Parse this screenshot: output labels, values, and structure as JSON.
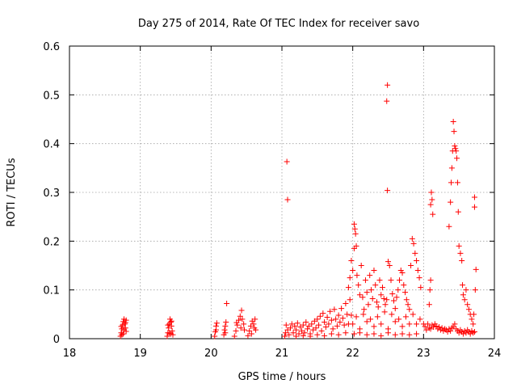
{
  "chart_data": {
    "type": "scatter",
    "title": "Day 275 of 2014, Rate Of TEC Index for receiver savo",
    "xlabel": "GPS time / hours",
    "ylabel": "ROTI / TECUs",
    "xlim": [
      18,
      24
    ],
    "ylim": [
      0,
      0.6
    ],
    "xticks": [
      18,
      19,
      20,
      21,
      22,
      23,
      24
    ],
    "yticks": [
      0,
      0.1,
      0.2,
      0.3,
      0.4,
      0.5,
      0.6
    ],
    "ytick_labels": [
      "0",
      "0.1",
      "0.2",
      "0.3",
      "0.4",
      "0.5",
      "0.6"
    ],
    "grid": true,
    "marker": "+",
    "color": "#ff0000",
    "series": [
      {
        "name": "ROTI",
        "points": [
          [
            18.72,
            0.005
          ],
          [
            18.73,
            0.012
          ],
          [
            18.74,
            0.02
          ],
          [
            18.75,
            0.028
          ],
          [
            18.76,
            0.035
          ],
          [
            18.77,
            0.04
          ],
          [
            18.78,
            0.03
          ],
          [
            18.79,
            0.022
          ],
          [
            18.8,
            0.015
          ],
          [
            18.74,
            0.008
          ],
          [
            18.77,
            0.018
          ],
          [
            18.79,
            0.033
          ],
          [
            18.73,
            0.025
          ],
          [
            18.76,
            0.01
          ],
          [
            18.8,
            0.038
          ],
          [
            19.38,
            0.005
          ],
          [
            19.39,
            0.012
          ],
          [
            19.4,
            0.022
          ],
          [
            19.41,
            0.03
          ],
          [
            19.42,
            0.04
          ],
          [
            19.43,
            0.034
          ],
          [
            19.44,
            0.026
          ],
          [
            19.45,
            0.016
          ],
          [
            19.46,
            0.008
          ],
          [
            19.41,
            0.012
          ],
          [
            19.44,
            0.036
          ],
          [
            19.39,
            0.028
          ],
          [
            19.43,
            0.01
          ],
          [
            20.05,
            0.005
          ],
          [
            20.06,
            0.014
          ],
          [
            20.07,
            0.026
          ],
          [
            20.08,
            0.032
          ],
          [
            20.07,
            0.018
          ],
          [
            20.18,
            0.008
          ],
          [
            20.19,
            0.018
          ],
          [
            20.2,
            0.026
          ],
          [
            20.21,
            0.034
          ],
          [
            20.22,
            0.072
          ],
          [
            20.2,
            0.012
          ],
          [
            20.33,
            0.005
          ],
          [
            20.35,
            0.016
          ],
          [
            20.37,
            0.028
          ],
          [
            20.39,
            0.038
          ],
          [
            20.41,
            0.046
          ],
          [
            20.43,
            0.058
          ],
          [
            20.44,
            0.04
          ],
          [
            20.46,
            0.03
          ],
          [
            20.47,
            0.018
          ],
          [
            20.36,
            0.033
          ],
          [
            20.42,
            0.022
          ],
          [
            20.52,
            0.006
          ],
          [
            20.54,
            0.016
          ],
          [
            20.56,
            0.026
          ],
          [
            20.58,
            0.036
          ],
          [
            20.6,
            0.03
          ],
          [
            20.62,
            0.04
          ],
          [
            20.63,
            0.018
          ],
          [
            20.57,
            0.01
          ],
          [
            20.61,
            0.022
          ],
          [
            21.07,
            0.363
          ],
          [
            21.08,
            0.285
          ],
          [
            21.04,
            0.005
          ],
          [
            21.05,
            0.012
          ],
          [
            21.06,
            0.028
          ],
          [
            21.08,
            0.018
          ],
          [
            21.1,
            0.008
          ],
          [
            21.12,
            0.022
          ],
          [
            21.14,
            0.03
          ],
          [
            21.16,
            0.012
          ],
          [
            21.18,
            0.026
          ],
          [
            21.2,
            0.018
          ],
          [
            21.22,
            0.032
          ],
          [
            21.24,
            0.01
          ],
          [
            21.26,
            0.024
          ],
          [
            21.28,
            0.016
          ],
          [
            21.3,
            0.028
          ],
          [
            21.32,
            0.012
          ],
          [
            21.34,
            0.034
          ],
          [
            21.36,
            0.02
          ],
          [
            21.38,
            0.026
          ],
          [
            21.4,
            0.01
          ],
          [
            21.42,
            0.03
          ],
          [
            21.44,
            0.018
          ],
          [
            21.46,
            0.036
          ],
          [
            21.48,
            0.022
          ],
          [
            21.5,
            0.04
          ],
          [
            21.52,
            0.028
          ],
          [
            21.54,
            0.046
          ],
          [
            21.56,
            0.016
          ],
          [
            21.58,
            0.052
          ],
          [
            21.6,
            0.034
          ],
          [
            21.62,
            0.024
          ],
          [
            21.64,
            0.044
          ],
          [
            21.66,
            0.03
          ],
          [
            21.68,
            0.056
          ],
          [
            21.7,
            0.038
          ],
          [
            21.72,
            0.02
          ],
          [
            21.74,
            0.06
          ],
          [
            21.76,
            0.04
          ],
          [
            21.78,
            0.026
          ],
          [
            21.8,
            0.048
          ],
          [
            21.82,
            0.034
          ],
          [
            21.84,
            0.062
          ],
          [
            21.86,
            0.042
          ],
          [
            21.88,
            0.028
          ],
          [
            21.9,
            0.072
          ],
          [
            21.92,
            0.05
          ],
          [
            21.94,
            0.03
          ],
          [
            21.96,
            0.08
          ],
          [
            21.98,
            0.048
          ],
          [
            21.2,
            0.005
          ],
          [
            21.3,
            0.006
          ],
          [
            21.4,
            0.005
          ],
          [
            21.5,
            0.008
          ],
          [
            21.6,
            0.006
          ],
          [
            21.7,
            0.01
          ],
          [
            21.8,
            0.008
          ],
          [
            21.9,
            0.012
          ],
          [
            21.94,
            0.105
          ],
          [
            21.96,
            0.125
          ],
          [
            21.98,
            0.16
          ],
          [
            22.0,
            0.14
          ],
          [
            22.02,
            0.185
          ],
          [
            22.02,
            0.235
          ],
          [
            22.03,
            0.225
          ],
          [
            22.04,
            0.215
          ],
          [
            22.05,
            0.19
          ],
          [
            22.06,
            0.13
          ],
          [
            22.08,
            0.11
          ],
          [
            22.1,
            0.09
          ],
          [
            22.12,
            0.15
          ],
          [
            22.14,
            0.085
          ],
          [
            22.16,
            0.06
          ],
          [
            22.18,
            0.12
          ],
          [
            22.2,
            0.095
          ],
          [
            22.22,
            0.07
          ],
          [
            22.24,
            0.13
          ],
          [
            22.26,
            0.1
          ],
          [
            22.28,
            0.082
          ],
          [
            22.3,
            0.14
          ],
          [
            22.32,
            0.11
          ],
          [
            22.34,
            0.075
          ],
          [
            22.36,
            0.065
          ],
          [
            22.38,
            0.12
          ],
          [
            22.4,
            0.09
          ],
          [
            22.42,
            0.105
          ],
          [
            22.44,
            0.082
          ],
          [
            22.46,
            0.07
          ],
          [
            22.48,
            0.08
          ],
          [
            22.5,
            0.158
          ],
          [
            22.52,
            0.15
          ],
          [
            22.54,
            0.12
          ],
          [
            22.56,
            0.092
          ],
          [
            22.58,
            0.078
          ],
          [
            22.6,
            0.062
          ],
          [
            22.62,
            0.085
          ],
          [
            22.64,
            0.1
          ],
          [
            22.66,
            0.12
          ],
          [
            22.68,
            0.14
          ],
          [
            22.7,
            0.135
          ],
          [
            22.72,
            0.11
          ],
          [
            22.74,
            0.095
          ],
          [
            22.76,
            0.08
          ],
          [
            22.78,
            0.07
          ],
          [
            22.8,
            0.06
          ],
          [
            22.82,
            0.15
          ],
          [
            22.84,
            0.205
          ],
          [
            22.86,
            0.195
          ],
          [
            22.88,
            0.175
          ],
          [
            22.9,
            0.16
          ],
          [
            22.92,
            0.14
          ],
          [
            22.94,
            0.125
          ],
          [
            22.96,
            0.105
          ],
          [
            22.0,
            0.03
          ],
          [
            22.05,
            0.045
          ],
          [
            22.1,
            0.02
          ],
          [
            22.15,
            0.05
          ],
          [
            22.2,
            0.035
          ],
          [
            22.25,
            0.04
          ],
          [
            22.3,
            0.025
          ],
          [
            22.35,
            0.045
          ],
          [
            22.4,
            0.03
          ],
          [
            22.45,
            0.055
          ],
          [
            22.5,
            0.02
          ],
          [
            22.55,
            0.05
          ],
          [
            22.6,
            0.035
          ],
          [
            22.65,
            0.04
          ],
          [
            22.7,
            0.025
          ],
          [
            22.75,
            0.045
          ],
          [
            22.8,
            0.03
          ],
          [
            22.85,
            0.05
          ],
          [
            22.9,
            0.03
          ],
          [
            22.95,
            0.04
          ],
          [
            22.02,
            0.01
          ],
          [
            22.1,
            0.012
          ],
          [
            22.2,
            0.008
          ],
          [
            22.3,
            0.01
          ],
          [
            22.4,
            0.006
          ],
          [
            22.5,
            0.012
          ],
          [
            22.6,
            0.008
          ],
          [
            22.7,
            0.01
          ],
          [
            22.8,
            0.008
          ],
          [
            22.9,
            0.01
          ],
          [
            22.49,
            0.52
          ],
          [
            22.48,
            0.487
          ],
          [
            22.49,
            0.304
          ],
          [
            23.0,
            0.03
          ],
          [
            23.02,
            0.025
          ],
          [
            23.04,
            0.018
          ],
          [
            23.06,
            0.03
          ],
          [
            23.08,
            0.022
          ],
          [
            23.1,
            0.02
          ],
          [
            23.12,
            0.028
          ],
          [
            23.14,
            0.024
          ],
          [
            23.16,
            0.03
          ],
          [
            23.18,
            0.026
          ],
          [
            23.2,
            0.02
          ],
          [
            23.22,
            0.024
          ],
          [
            23.24,
            0.018
          ],
          [
            23.26,
            0.022
          ],
          [
            23.28,
            0.016
          ],
          [
            23.3,
            0.02
          ],
          [
            23.32,
            0.018
          ],
          [
            23.34,
            0.014
          ],
          [
            23.36,
            0.02
          ],
          [
            23.38,
            0.016
          ],
          [
            23.4,
            0.022
          ],
          [
            23.42,
            0.025
          ],
          [
            23.44,
            0.03
          ],
          [
            23.46,
            0.02
          ],
          [
            23.48,
            0.016
          ],
          [
            23.5,
            0.012
          ],
          [
            23.52,
            0.018
          ],
          [
            23.54,
            0.014
          ],
          [
            23.56,
            0.01
          ],
          [
            23.58,
            0.016
          ],
          [
            23.6,
            0.012
          ],
          [
            23.62,
            0.018
          ],
          [
            23.64,
            0.014
          ],
          [
            23.66,
            0.01
          ],
          [
            23.68,
            0.016
          ],
          [
            23.7,
            0.012
          ],
          [
            23.72,
            0.014
          ],
          [
            23.08,
            0.07
          ],
          [
            23.09,
            0.1
          ],
          [
            23.1,
            0.12
          ],
          [
            23.1,
            0.275
          ],
          [
            23.11,
            0.3
          ],
          [
            23.12,
            0.285
          ],
          [
            23.13,
            0.255
          ],
          [
            23.36,
            0.23
          ],
          [
            23.38,
            0.28
          ],
          [
            23.39,
            0.32
          ],
          [
            23.4,
            0.35
          ],
          [
            23.41,
            0.385
          ],
          [
            23.42,
            0.445
          ],
          [
            23.43,
            0.425
          ],
          [
            23.44,
            0.395
          ],
          [
            23.45,
            0.39
          ],
          [
            23.46,
            0.385
          ],
          [
            23.47,
            0.37
          ],
          [
            23.48,
            0.32
          ],
          [
            23.49,
            0.26
          ],
          [
            23.5,
            0.19
          ],
          [
            23.52,
            0.175
          ],
          [
            23.54,
            0.16
          ],
          [
            23.55,
            0.11
          ],
          [
            23.56,
            0.09
          ],
          [
            23.58,
            0.08
          ],
          [
            23.6,
            0.1
          ],
          [
            23.62,
            0.07
          ],
          [
            23.64,
            0.06
          ],
          [
            23.66,
            0.05
          ],
          [
            23.68,
            0.04
          ],
          [
            23.7,
            0.03
          ],
          [
            23.72,
            0.29
          ],
          [
            23.72,
            0.27
          ],
          [
            23.74,
            0.142
          ],
          [
            23.73,
            0.1
          ],
          [
            23.71,
            0.05
          ]
        ]
      }
    ]
  }
}
